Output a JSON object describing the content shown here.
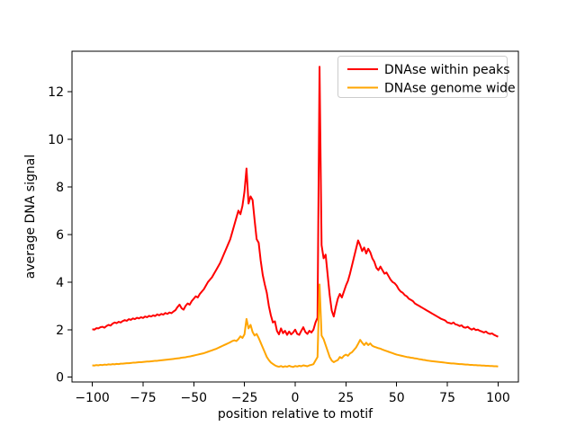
{
  "chart_data": {
    "type": "line",
    "title": "",
    "xlabel": "position relative to motif",
    "ylabel": "average DNA signal",
    "xlim": [
      -110,
      110
    ],
    "ylim": [
      -0.2,
      13.7
    ],
    "grid": false,
    "legend": {
      "position": "upper right",
      "border_color": "#cccccc"
    },
    "x_ticks": {
      "values": [
        -100,
        -75,
        -50,
        -25,
        0,
        25,
        50,
        75,
        100
      ],
      "labels": [
        "−100",
        "−75",
        "−50",
        "−25",
        "0",
        "25",
        "50",
        "75",
        "100"
      ]
    },
    "y_ticks": {
      "values": [
        0,
        2,
        4,
        6,
        8,
        10,
        12
      ],
      "labels": [
        "0",
        "2",
        "4",
        "6",
        "8",
        "10",
        "12"
      ]
    },
    "x": [
      -100,
      -99,
      -98,
      -97,
      -96,
      -95,
      -94,
      -93,
      -92,
      -91,
      -90,
      -89,
      -88,
      -87,
      -86,
      -85,
      -84,
      -83,
      -82,
      -81,
      -80,
      -79,
      -78,
      -77,
      -76,
      -75,
      -74,
      -73,
      -72,
      -71,
      -70,
      -69,
      -68,
      -67,
      -66,
      -65,
      -64,
      -63,
      -62,
      -61,
      -60,
      -59,
      -58,
      -57,
      -56,
      -55,
      -54,
      -53,
      -52,
      -51,
      -50,
      -49,
      -48,
      -47,
      -46,
      -45,
      -44,
      -43,
      -42,
      -41,
      -40,
      -39,
      -38,
      -37,
      -36,
      -35,
      -34,
      -33,
      -32,
      -31,
      -30,
      -29,
      -28,
      -27,
      -26,
      -25,
      -24,
      -23,
      -22,
      -21,
      -20,
      -19,
      -18,
      -17,
      -16,
      -15,
      -14,
      -13,
      -12,
      -11,
      -10,
      -9,
      -8,
      -7,
      -6,
      -5,
      -4,
      -3,
      -2,
      -1,
      0,
      1,
      2,
      3,
      4,
      5,
      6,
      7,
      8,
      9,
      10,
      11,
      12,
      13,
      14,
      15,
      16,
      17,
      18,
      19,
      20,
      21,
      22,
      23,
      24,
      25,
      26,
      27,
      28,
      29,
      30,
      31,
      32,
      33,
      34,
      35,
      36,
      37,
      38,
      39,
      40,
      41,
      42,
      43,
      44,
      45,
      46,
      47,
      48,
      49,
      50,
      51,
      52,
      53,
      54,
      55,
      56,
      57,
      58,
      59,
      60,
      61,
      62,
      63,
      64,
      65,
      66,
      67,
      68,
      69,
      70,
      71,
      72,
      73,
      74,
      75,
      76,
      77,
      78,
      79,
      80,
      81,
      82,
      83,
      84,
      85,
      86,
      87,
      88,
      89,
      90,
      91,
      92,
      93,
      94,
      95,
      96,
      97,
      98,
      99,
      100
    ],
    "series": [
      {
        "name": "DNAse within peaks",
        "color": "#ff0000",
        "values": [
          2.02,
          2.0,
          2.06,
          2.05,
          2.1,
          2.12,
          2.08,
          2.15,
          2.2,
          2.17,
          2.25,
          2.3,
          2.27,
          2.33,
          2.3,
          2.36,
          2.4,
          2.37,
          2.44,
          2.41,
          2.47,
          2.44,
          2.5,
          2.47,
          2.52,
          2.49,
          2.55,
          2.52,
          2.58,
          2.55,
          2.6,
          2.57,
          2.64,
          2.6,
          2.66,
          2.63,
          2.7,
          2.66,
          2.72,
          2.69,
          2.76,
          2.82,
          2.95,
          3.05,
          2.9,
          2.84,
          3.0,
          3.1,
          3.05,
          3.2,
          3.3,
          3.4,
          3.35,
          3.5,
          3.6,
          3.7,
          3.85,
          4.0,
          4.1,
          4.2,
          4.35,
          4.5,
          4.65,
          4.8,
          5.0,
          5.2,
          5.4,
          5.6,
          5.8,
          6.1,
          6.4,
          6.7,
          7.0,
          6.85,
          7.2,
          7.8,
          8.77,
          7.3,
          7.6,
          7.45,
          6.6,
          5.8,
          5.65,
          4.9,
          4.3,
          3.9,
          3.55,
          3.0,
          2.6,
          2.3,
          2.35,
          1.95,
          1.8,
          2.05,
          1.85,
          1.95,
          1.78,
          1.92,
          1.8,
          1.88,
          2.0,
          1.82,
          1.78,
          1.95,
          2.1,
          1.9,
          1.82,
          1.95,
          1.88,
          2.0,
          2.3,
          2.5,
          13.05,
          5.55,
          5.0,
          5.15,
          4.3,
          3.45,
          2.8,
          2.55,
          2.95,
          3.3,
          3.5,
          3.35,
          3.6,
          3.85,
          4.05,
          4.35,
          4.7,
          5.05,
          5.4,
          5.75,
          5.55,
          5.3,
          5.45,
          5.2,
          5.4,
          5.25,
          5.0,
          4.85,
          4.6,
          4.5,
          4.65,
          4.5,
          4.35,
          4.4,
          4.25,
          4.1,
          4.0,
          3.95,
          3.85,
          3.7,
          3.6,
          3.55,
          3.45,
          3.4,
          3.3,
          3.25,
          3.2,
          3.1,
          3.05,
          3.0,
          2.95,
          2.9,
          2.85,
          2.8,
          2.75,
          2.7,
          2.65,
          2.6,
          2.55,
          2.5,
          2.45,
          2.42,
          2.38,
          2.3,
          2.28,
          2.25,
          2.3,
          2.22,
          2.2,
          2.15,
          2.18,
          2.1,
          2.08,
          2.12,
          2.05,
          2.0,
          2.05,
          1.98,
          2.0,
          1.95,
          1.92,
          1.88,
          1.92,
          1.85,
          1.82,
          1.84,
          1.78,
          1.74,
          1.7
        ]
      },
      {
        "name": "DNAse genome wide",
        "color": "#ffa500",
        "values": [
          0.5,
          0.49,
          0.51,
          0.5,
          0.52,
          0.51,
          0.53,
          0.52,
          0.54,
          0.53,
          0.55,
          0.54,
          0.56,
          0.55,
          0.57,
          0.57,
          0.58,
          0.59,
          0.59,
          0.6,
          0.61,
          0.61,
          0.62,
          0.63,
          0.63,
          0.64,
          0.65,
          0.66,
          0.66,
          0.67,
          0.68,
          0.69,
          0.69,
          0.7,
          0.71,
          0.72,
          0.73,
          0.74,
          0.75,
          0.76,
          0.77,
          0.78,
          0.79,
          0.8,
          0.82,
          0.83,
          0.84,
          0.86,
          0.87,
          0.89,
          0.91,
          0.93,
          0.95,
          0.97,
          0.99,
          1.01,
          1.04,
          1.07,
          1.1,
          1.13,
          1.16,
          1.19,
          1.23,
          1.27,
          1.31,
          1.35,
          1.39,
          1.43,
          1.47,
          1.52,
          1.55,
          1.52,
          1.6,
          1.72,
          1.65,
          1.8,
          2.45,
          2.05,
          2.2,
          1.9,
          1.75,
          1.82,
          1.65,
          1.45,
          1.25,
          1.05,
          0.85,
          0.72,
          0.62,
          0.56,
          0.5,
          0.46,
          0.44,
          0.47,
          0.43,
          0.46,
          0.44,
          0.48,
          0.45,
          0.43,
          0.47,
          0.45,
          0.48,
          0.46,
          0.5,
          0.48,
          0.46,
          0.5,
          0.52,
          0.55,
          0.7,
          0.85,
          3.9,
          1.75,
          1.6,
          1.35,
          1.1,
          0.85,
          0.7,
          0.63,
          0.68,
          0.72,
          0.85,
          0.8,
          0.9,
          0.95,
          0.9,
          1.0,
          1.05,
          1.15,
          1.25,
          1.4,
          1.57,
          1.45,
          1.35,
          1.45,
          1.35,
          1.42,
          1.32,
          1.28,
          1.25,
          1.22,
          1.2,
          1.16,
          1.13,
          1.1,
          1.07,
          1.04,
          1.01,
          0.98,
          0.95,
          0.93,
          0.91,
          0.89,
          0.87,
          0.85,
          0.84,
          0.82,
          0.81,
          0.79,
          0.78,
          0.76,
          0.75,
          0.73,
          0.72,
          0.7,
          0.69,
          0.68,
          0.67,
          0.66,
          0.65,
          0.64,
          0.63,
          0.62,
          0.61,
          0.6,
          0.59,
          0.58,
          0.58,
          0.57,
          0.56,
          0.55,
          0.55,
          0.54,
          0.53,
          0.53,
          0.52,
          0.52,
          0.51,
          0.51,
          0.5,
          0.5,
          0.49,
          0.49,
          0.48,
          0.48,
          0.47,
          0.47,
          0.46,
          0.46,
          0.45
        ]
      }
    ]
  }
}
